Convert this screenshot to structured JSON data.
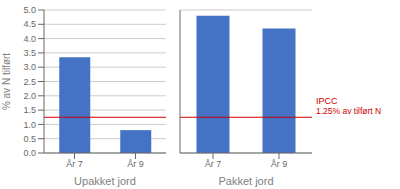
{
  "chart_data": [
    {
      "type": "bar",
      "xlabel": "Upakket jord",
      "ylabel": "% av N tilført",
      "categories": [
        "År 7",
        "År 9"
      ],
      "values": [
        3.35,
        0.8
      ],
      "color": "#4472c4",
      "ylim": [
        0,
        5
      ],
      "yticks": [
        {
          "value": 0,
          "label": "0.0"
        },
        {
          "value": 0.5,
          "label": "0.5"
        },
        {
          "value": 1,
          "label": "1.0"
        },
        {
          "value": 1.5,
          "label": "1.5"
        },
        {
          "value": 2,
          "label": "2.0"
        },
        {
          "value": 2.5,
          "label": "2.5"
        },
        {
          "value": 3,
          "label": "3.0"
        },
        {
          "value": 3.5,
          "label": "3.5"
        },
        {
          "value": 4,
          "label": "4.0"
        },
        {
          "value": 4.5,
          "label": "4.5"
        },
        {
          "value": 5,
          "label": "5.0"
        }
      ],
      "grid": true,
      "hline": {
        "value": 1.25,
        "color": "#cc0000"
      }
    },
    {
      "type": "bar",
      "xlabel": "Pakket jord",
      "categories": [
        "År 7",
        "År 9"
      ],
      "values": [
        4.8,
        4.35
      ],
      "color": "#4472c4",
      "ylim": [
        0,
        5
      ],
      "yticks": [
        0,
        0.5,
        1,
        1.5,
        2,
        2.5,
        3,
        3.5,
        4,
        4.5,
        5
      ],
      "grid": true,
      "tick_labels": "x",
      "hline": {
        "value": 1.25,
        "color": "#cc0000"
      },
      "annotations": [
        "IPCC",
        "1.25% av tilført N"
      ]
    }
  ]
}
